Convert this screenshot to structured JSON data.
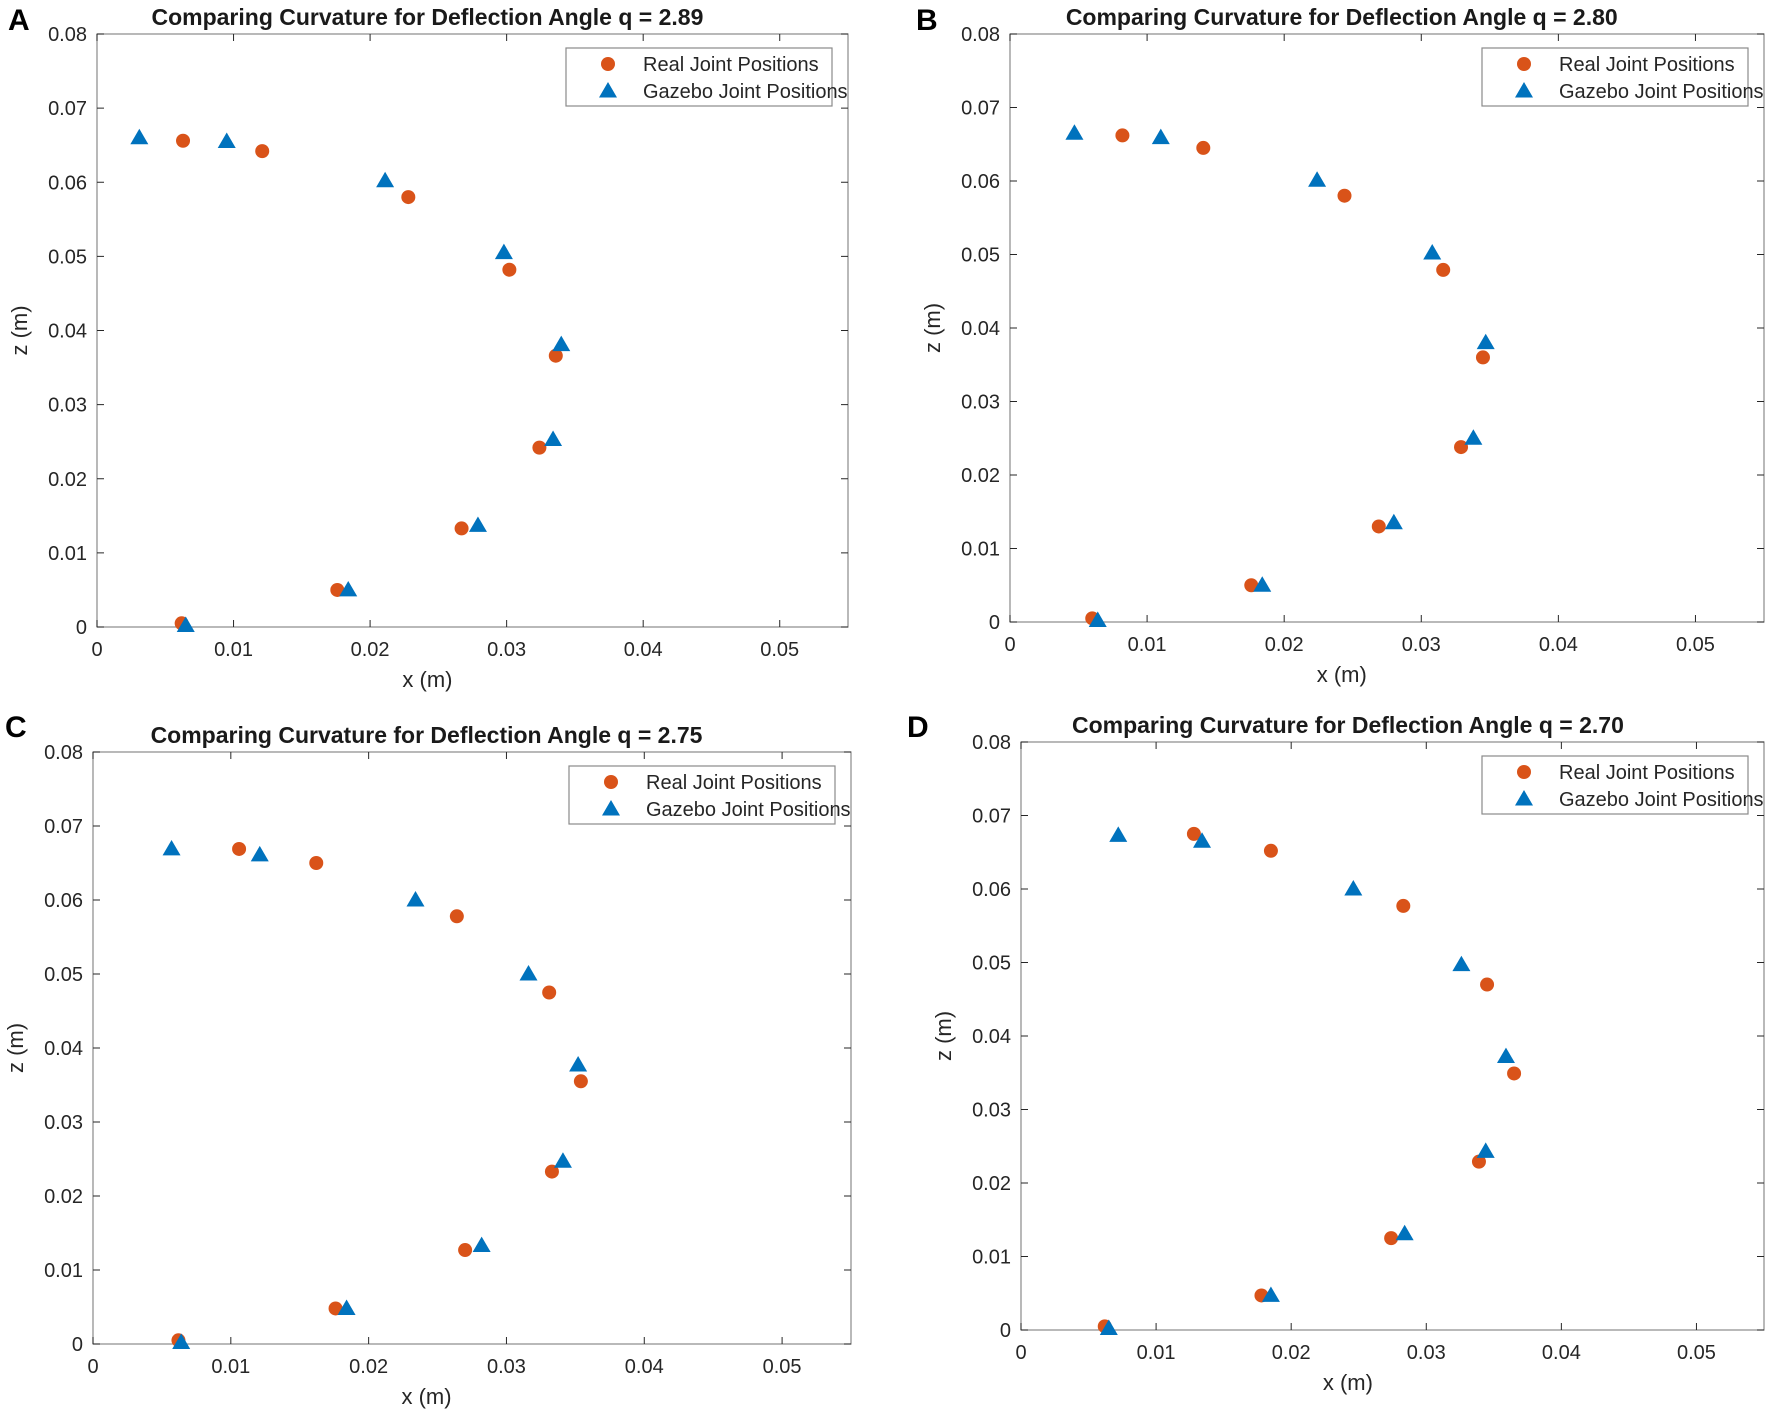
{
  "colors": {
    "real": "#D95319",
    "gazebo": "#0072BD",
    "axis": "#262626",
    "box": "#8a8a8a"
  },
  "chart_data": [
    {
      "panel": "A",
      "type": "scatter",
      "title": "Comparing Curvature for Deflection Angle q = 2.89",
      "xlabel": "x (m)",
      "ylabel": "z (m)",
      "xlim": [
        0,
        0.055
      ],
      "ylim": [
        0,
        0.08
      ],
      "xticks": [
        "0",
        "0.01",
        "0.02",
        "0.03",
        "0.04",
        "0.05"
      ],
      "yticks": [
        "0",
        "0.01",
        "0.02",
        "0.03",
        "0.04",
        "0.05",
        "0.06",
        "0.07",
        "0.08"
      ],
      "legend": "top-right",
      "series": [
        {
          "name": "Real Joint Positions",
          "marker": "circle",
          "x": [
            0.0062,
            0.0176,
            0.0267,
            0.0324,
            0.0336,
            0.0302,
            0.0228,
            0.0121,
            0.0063
          ],
          "y": [
            0.0005,
            0.005,
            0.0133,
            0.0242,
            0.0366,
            0.0482,
            0.058,
            0.0642,
            0.0656
          ]
        },
        {
          "name": "Gazebo Joint Positions",
          "marker": "triangle",
          "x": [
            0.0065,
            0.0184,
            0.0279,
            0.0334,
            0.034,
            0.0298,
            0.0211,
            0.0095,
            0.0031
          ],
          "y": [
            0.0002,
            0.005,
            0.0137,
            0.0253,
            0.0381,
            0.0505,
            0.0602,
            0.0655,
            0.066
          ]
        }
      ]
    },
    {
      "panel": "B",
      "type": "scatter",
      "title": "Comparing Curvature for Deflection Angle q = 2.80",
      "xlabel": "x (m)",
      "ylabel": "z (m)",
      "xlim": [
        0,
        0.055
      ],
      "ylim": [
        0,
        0.08
      ],
      "xticks": [
        "0",
        "0.01",
        "0.02",
        "0.03",
        "0.04",
        "0.05"
      ],
      "yticks": [
        "0",
        "0.01",
        "0.02",
        "0.03",
        "0.04",
        "0.05",
        "0.06",
        "0.07",
        "0.08"
      ],
      "legend": "top-right",
      "series": [
        {
          "name": "Real Joint Positions",
          "marker": "circle",
          "x": [
            0.006,
            0.0176,
            0.0269,
            0.0329,
            0.0345,
            0.0316,
            0.0244,
            0.0141,
            0.0082
          ],
          "y": [
            0.0005,
            0.005,
            0.013,
            0.0238,
            0.036,
            0.0479,
            0.058,
            0.0645,
            0.0662
          ]
        },
        {
          "name": "Gazebo Joint Positions",
          "marker": "triangle",
          "x": [
            0.0064,
            0.0184,
            0.028,
            0.0338,
            0.0347,
            0.0308,
            0.0224,
            0.011,
            0.0047
          ],
          "y": [
            0.0002,
            0.005,
            0.0135,
            0.025,
            0.038,
            0.0502,
            0.0601,
            0.0659,
            0.0665
          ]
        }
      ]
    },
    {
      "panel": "C",
      "type": "scatter",
      "title": "Comparing Curvature for Deflection Angle q = 2.75",
      "xlabel": "x (m)",
      "ylabel": "z (m)",
      "xlim": [
        0,
        0.055
      ],
      "ylim": [
        0,
        0.08
      ],
      "xticks": [
        "0",
        "0.01",
        "0.02",
        "0.03",
        "0.04",
        "0.05"
      ],
      "yticks": [
        "0",
        "0.01",
        "0.02",
        "0.03",
        "0.04",
        "0.05",
        "0.06",
        "0.07",
        "0.08"
      ],
      "legend": "top-right",
      "series": [
        {
          "name": "Real Joint Positions",
          "marker": "circle",
          "x": [
            0.0062,
            0.0176,
            0.027,
            0.0333,
            0.0354,
            0.0331,
            0.0264,
            0.0162,
            0.0106
          ],
          "y": [
            0.0005,
            0.0048,
            0.0127,
            0.0233,
            0.0355,
            0.0475,
            0.0578,
            0.065,
            0.0669
          ]
        },
        {
          "name": "Gazebo Joint Positions",
          "marker": "triangle",
          "x": [
            0.0064,
            0.0184,
            0.0282,
            0.0341,
            0.0352,
            0.0316,
            0.0234,
            0.0121,
            0.0057
          ],
          "y": [
            0.0002,
            0.0048,
            0.0133,
            0.0247,
            0.0377,
            0.05,
            0.06,
            0.0661,
            0.0669
          ]
        }
      ]
    },
    {
      "panel": "D",
      "type": "scatter",
      "title": "Comparing Curvature for Deflection Angle q = 2.70",
      "xlabel": "x (m)",
      "ylabel": "z (m)",
      "xlim": [
        0,
        0.055
      ],
      "ylim": [
        0,
        0.08
      ],
      "xticks": [
        "0",
        "0.01",
        "0.02",
        "0.03",
        "0.04",
        "0.05"
      ],
      "yticks": [
        "0",
        "0.01",
        "0.02",
        "0.03",
        "0.04",
        "0.05",
        "0.06",
        "0.07",
        "0.08"
      ],
      "legend": "top-right",
      "series": [
        {
          "name": "Real Joint Positions",
          "marker": "circle",
          "x": [
            0.0062,
            0.0178,
            0.0274,
            0.0339,
            0.0365,
            0.0345,
            0.0283,
            0.0185,
            0.0128
          ],
          "y": [
            0.0005,
            0.0047,
            0.0125,
            0.0229,
            0.0349,
            0.047,
            0.0577,
            0.0652,
            0.0675
          ]
        },
        {
          "name": "Gazebo Joint Positions",
          "marker": "triangle",
          "x": [
            0.0065,
            0.0185,
            0.0284,
            0.0344,
            0.0359,
            0.0326,
            0.0246,
            0.0134,
            0.0072
          ],
          "y": [
            0.0002,
            0.0047,
            0.0131,
            0.0243,
            0.0372,
            0.0497,
            0.06,
            0.0665,
            0.0673
          ]
        }
      ]
    }
  ]
}
